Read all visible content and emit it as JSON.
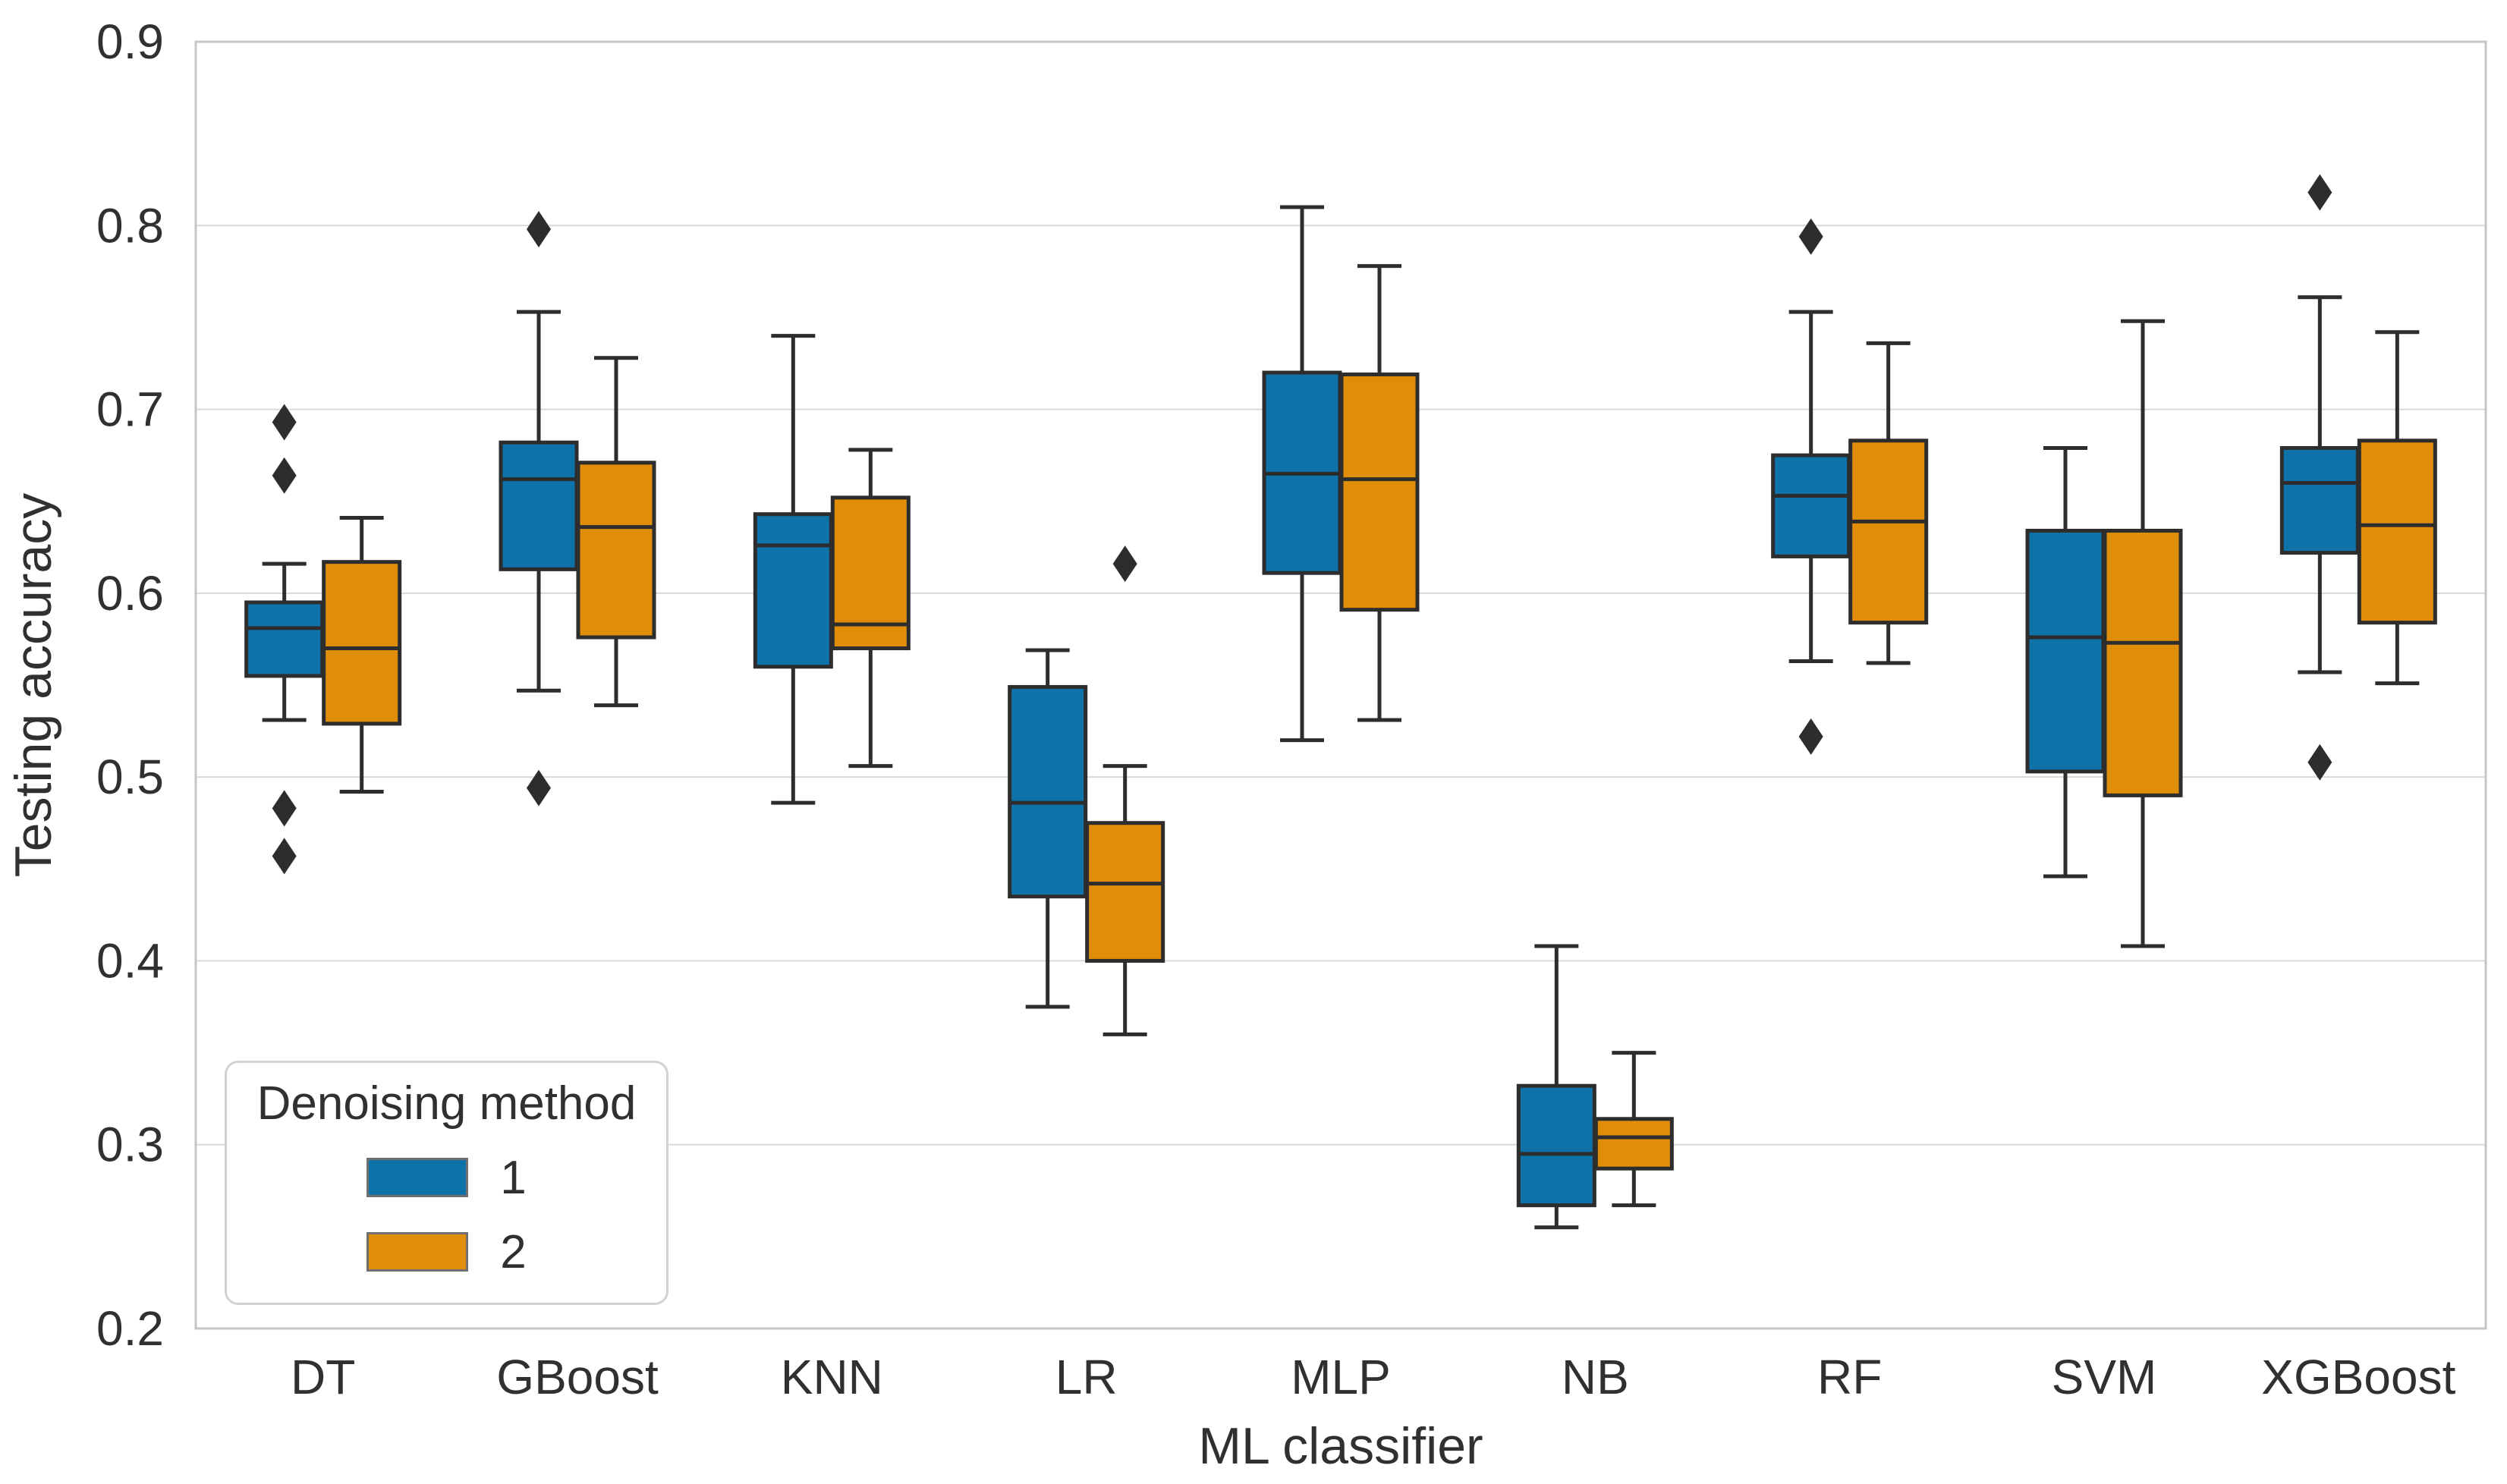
{
  "chart_data": {
    "type": "grouped_boxplot",
    "title": "",
    "xlabel": "ML classifier",
    "ylabel": "Testing accuracy",
    "ylim": [
      0.2,
      0.9
    ],
    "yticks": [
      "0.2",
      "0.3",
      "0.4",
      "0.5",
      "0.6",
      "0.7",
      "0.8",
      "0.9"
    ],
    "grid": "horizontal",
    "legend_position": "lower-left",
    "categories": [
      "DT",
      "GBoost",
      "KNN",
      "LR",
      "MLP",
      "NB",
      "RF",
      "SVM",
      "XGBoost"
    ],
    "legend": {
      "title": "Denoising method",
      "entries": [
        {
          "label": "1",
          "color": "#0f73a9"
        },
        {
          "label": "2",
          "color": "#e08e0a"
        }
      ]
    },
    "series": [
      {
        "name": "1",
        "color": "#0f73a9",
        "boxes": [
          {
            "whisker_low": 0.531,
            "q1": 0.555,
            "median": 0.581,
            "q3": 0.595,
            "whisker_high": 0.616,
            "outliers": [
              0.693,
              0.664,
              0.483,
              0.457
            ]
          },
          {
            "whisker_low": 0.547,
            "q1": 0.613,
            "median": 0.662,
            "q3": 0.682,
            "whisker_high": 0.753,
            "outliers": [
              0.798,
              0.494
            ]
          },
          {
            "whisker_low": 0.486,
            "q1": 0.56,
            "median": 0.626,
            "q3": 0.643,
            "whisker_high": 0.74,
            "outliers": []
          },
          {
            "whisker_low": 0.375,
            "q1": 0.435,
            "median": 0.486,
            "q3": 0.549,
            "whisker_high": 0.569,
            "outliers": []
          },
          {
            "whisker_low": 0.52,
            "q1": 0.611,
            "median": 0.665,
            "q3": 0.72,
            "whisker_high": 0.81,
            "outliers": []
          },
          {
            "whisker_low": 0.255,
            "q1": 0.267,
            "median": 0.295,
            "q3": 0.332,
            "whisker_high": 0.408,
            "outliers": []
          },
          {
            "whisker_low": 0.563,
            "q1": 0.62,
            "median": 0.653,
            "q3": 0.675,
            "whisker_high": 0.753,
            "outliers": [
              0.794,
              0.522
            ]
          },
          {
            "whisker_low": 0.446,
            "q1": 0.503,
            "median": 0.576,
            "q3": 0.634,
            "whisker_high": 0.679,
            "outliers": []
          },
          {
            "whisker_low": 0.557,
            "q1": 0.622,
            "median": 0.66,
            "q3": 0.679,
            "whisker_high": 0.761,
            "outliers": [
              0.818,
              0.508
            ]
          }
        ]
      },
      {
        "name": "2",
        "color": "#e08e0a",
        "boxes": [
          {
            "whisker_low": 0.492,
            "q1": 0.529,
            "median": 0.57,
            "q3": 0.617,
            "whisker_high": 0.641,
            "outliers": []
          },
          {
            "whisker_low": 0.539,
            "q1": 0.576,
            "median": 0.636,
            "q3": 0.671,
            "whisker_high": 0.728,
            "outliers": []
          },
          {
            "whisker_low": 0.506,
            "q1": 0.57,
            "median": 0.583,
            "q3": 0.652,
            "whisker_high": 0.678,
            "outliers": []
          },
          {
            "whisker_low": 0.36,
            "q1": 0.4,
            "median": 0.442,
            "q3": 0.475,
            "whisker_high": 0.506,
            "outliers": [
              0.616
            ]
          },
          {
            "whisker_low": 0.531,
            "q1": 0.591,
            "median": 0.662,
            "q3": 0.719,
            "whisker_high": 0.778,
            "outliers": []
          },
          {
            "whisker_low": 0.267,
            "q1": 0.287,
            "median": 0.304,
            "q3": 0.314,
            "whisker_high": 0.35,
            "outliers": []
          },
          {
            "whisker_low": 0.562,
            "q1": 0.584,
            "median": 0.639,
            "q3": 0.683,
            "whisker_high": 0.736,
            "outliers": []
          },
          {
            "whisker_low": 0.408,
            "q1": 0.49,
            "median": 0.573,
            "q3": 0.634,
            "whisker_high": 0.748,
            "outliers": []
          },
          {
            "whisker_low": 0.551,
            "q1": 0.584,
            "median": 0.637,
            "q3": 0.683,
            "whisker_high": 0.742,
            "outliers": []
          }
        ]
      }
    ],
    "style": {
      "background": "#ffffff",
      "frame_color": "#c6c6c6",
      "grid_color": "#d9d9d9",
      "text_color": "#303030",
      "box_edge_color": "#2d2d2d",
      "outlier_color": "#2d2d2d"
    }
  }
}
